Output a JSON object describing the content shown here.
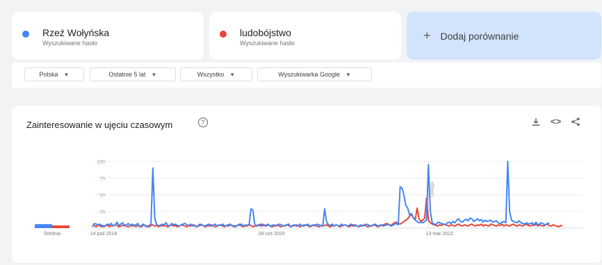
{
  "terms": [
    {
      "name": "Rzeź Wołyńska",
      "sub": "Wyszukiwane hasło",
      "color": "#4285f4"
    },
    {
      "name": "ludobójstwo",
      "sub": "Wyszukiwane hasło",
      "color": "#ea4335"
    }
  ],
  "add_compare": {
    "label": "Dodaj porównanie",
    "icon": "plus-icon"
  },
  "filters": {
    "region": "Polska",
    "period": "Ostatnie 5 lat",
    "category": "Wszystko",
    "source": "Wyszukiwarka Google"
  },
  "chart_card": {
    "title": "Zainteresowanie w ujęciu czasowym",
    "help_icon": "help-icon",
    "tools": [
      "download-icon",
      "embed-icon",
      "share-icon"
    ]
  },
  "chart_data": {
    "type": "line",
    "yticks": [
      "100",
      "75",
      "50",
      "25"
    ],
    "ylim": [
      0,
      100
    ],
    "xlim": [
      0,
      260
    ],
    "xticks": [
      {
        "x": 0,
        "label": "14 paź 2018"
      },
      {
        "x": 89,
        "label": "28 cze 2020"
      },
      {
        "x": 178,
        "label": "13 mar 2022"
      }
    ],
    "note": {
      "x": 178,
      "label": "Uwaga"
    },
    "averages": {
      "label": "Średnia",
      "values": [
        6,
        4
      ]
    },
    "series": [
      {
        "name": "Rzeź Wołyńska",
        "color": "#4285f4",
        "values": [
          2,
          7,
          6,
          5,
          6,
          4,
          2,
          4,
          6,
          5,
          7,
          3,
          5,
          9,
          4,
          6,
          8,
          3,
          5,
          7,
          4,
          6,
          3,
          5,
          7,
          2,
          4,
          6,
          3,
          2,
          4,
          6,
          90,
          15,
          5,
          4,
          3,
          6,
          5,
          8,
          4,
          3,
          7,
          5,
          6,
          4,
          3,
          5,
          6,
          7,
          5,
          4,
          6,
          3,
          5,
          2,
          4,
          6,
          5,
          3,
          4,
          5,
          6,
          3,
          4,
          6,
          3,
          5,
          4,
          6,
          3,
          4,
          5,
          6,
          3,
          4,
          2,
          5,
          4,
          6,
          3,
          5,
          4,
          6,
          29,
          27,
          5,
          3,
          4,
          6,
          3,
          5,
          4,
          6,
          3,
          4,
          5,
          3,
          4,
          6,
          5,
          3,
          4,
          5,
          6,
          2,
          4,
          5,
          3,
          4,
          6,
          3,
          5,
          4,
          6,
          3,
          4,
          5,
          3,
          6,
          5,
          4,
          3,
          29,
          10,
          5,
          4,
          6,
          3,
          5,
          4,
          3,
          6,
          4,
          5,
          3,
          4,
          6,
          5,
          3,
          4,
          2,
          5,
          3,
          4,
          6,
          5,
          3,
          4,
          5,
          6,
          3,
          4,
          5,
          3,
          4,
          5,
          6,
          3,
          4,
          6,
          7,
          5,
          62,
          60,
          50,
          34,
          30,
          20,
          22,
          15,
          12,
          10,
          8,
          9,
          8,
          10,
          12,
          95,
          25,
          8,
          6,
          5,
          9,
          8,
          7,
          6,
          5,
          8,
          9,
          7,
          10,
          8,
          12,
          14,
          10,
          9,
          12,
          13,
          11,
          15,
          14,
          10,
          12,
          14,
          11,
          13,
          9,
          12,
          10,
          11,
          12,
          9,
          10,
          11,
          8,
          7,
          9,
          10,
          8,
          100,
          25,
          12,
          10,
          9,
          8,
          11,
          8,
          7,
          6,
          8,
          6,
          7,
          8,
          5,
          9,
          4,
          7,
          8,
          6,
          5,
          7,
          8
        ]
      },
      {
        "name": "ludobójstwo",
        "color": "#ea4335",
        "values": [
          3,
          4,
          2,
          5,
          3,
          2,
          4,
          3,
          5,
          2,
          4,
          3,
          5,
          4,
          2,
          3,
          4,
          5,
          3,
          2,
          4,
          3,
          5,
          2,
          4,
          3,
          2,
          5,
          4,
          3,
          2,
          4,
          5,
          3,
          4,
          2,
          5,
          3,
          4,
          3,
          2,
          4,
          5,
          3,
          4,
          2,
          3,
          5,
          4,
          3,
          2,
          4,
          3,
          5,
          4,
          2,
          3,
          4,
          5,
          3,
          2,
          4,
          3,
          5,
          4,
          2,
          3,
          4,
          5,
          3,
          2,
          4,
          3,
          5,
          4,
          2,
          3,
          4,
          6,
          3,
          2,
          4,
          3,
          5,
          4,
          2,
          3,
          4,
          5,
          3,
          6,
          4,
          3,
          5,
          4,
          2,
          3,
          4,
          5,
          3,
          2,
          4,
          3,
          5,
          4,
          2,
          3,
          4,
          5,
          3,
          2,
          4,
          3,
          5,
          4,
          2,
          3,
          4,
          5,
          3,
          2,
          4,
          3,
          4,
          5,
          3,
          2,
          4,
          3,
          5,
          4,
          2,
          3,
          4,
          5,
          3,
          2,
          4,
          3,
          5,
          4,
          2,
          3,
          4,
          5,
          3,
          2,
          4,
          3,
          5,
          4,
          2,
          3,
          4,
          5,
          6,
          7,
          5,
          4,
          6,
          8,
          9,
          7,
          6,
          8,
          10,
          12,
          14,
          18,
          20,
          16,
          12,
          30,
          14,
          10,
          12,
          15,
          45,
          12,
          8,
          6,
          5,
          4,
          3,
          5,
          4,
          6,
          5,
          4,
          3,
          5,
          4,
          3,
          5,
          6,
          4,
          3,
          5,
          4,
          3,
          5,
          6,
          4,
          3,
          5,
          4,
          6,
          3,
          5,
          4,
          3,
          6,
          5,
          4,
          3,
          5,
          4,
          6,
          3,
          5,
          4,
          3,
          5,
          6,
          4,
          3,
          5,
          4,
          3,
          6,
          5,
          4,
          3,
          5,
          4,
          6,
          3,
          5,
          4,
          3,
          5,
          6,
          4,
          3,
          5,
          4,
          3,
          2,
          4,
          3
        ]
      }
    ]
  }
}
